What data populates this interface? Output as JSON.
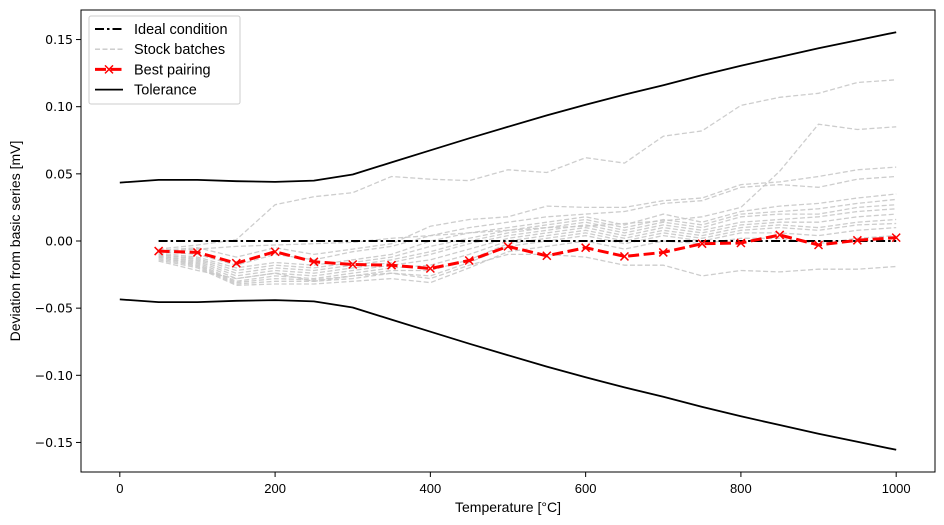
{
  "chart_data": {
    "type": "line",
    "title": "",
    "xlabel": "Temperature  [°C]",
    "ylabel": "Deviation from basic series  [mV]",
    "xlim": [
      -50,
      1050
    ],
    "ylim": [
      -0.172,
      0.172
    ],
    "xticks": [
      0,
      200,
      400,
      600,
      800,
      1000
    ],
    "xtick_labels": [
      "0",
      "200",
      "400",
      "600",
      "800",
      "1000"
    ],
    "yticks": [
      0.15,
      0.1,
      0.05,
      0.0,
      -0.05,
      -0.1,
      -0.15
    ],
    "ytick_labels": [
      "0.15",
      "0.10",
      "0.05",
      "0.00",
      "−0.05",
      "−0.10",
      "−0.15"
    ],
    "grid": false,
    "legend": {
      "placement": "top-left",
      "entries": [
        {
          "label": "Ideal condition",
          "style": "dashdot",
          "color": "#000000"
        },
        {
          "label": "Stock batches",
          "style": "dashed",
          "color": "#c8c8c8"
        },
        {
          "label": "Best pairing",
          "style": "dashed-marker-x",
          "color": "#ff0000"
        },
        {
          "label": "Tolerance",
          "style": "solid",
          "color": "#000000"
        }
      ]
    },
    "series": [
      {
        "name": "Ideal condition",
        "color": "#000000",
        "style": "dashdot",
        "x": [
          50,
          1000
        ],
        "y": [
          0.0,
          0.0
        ]
      },
      {
        "name": "Tolerance (upper)",
        "color": "#000000",
        "style": "solid",
        "x": [
          0,
          50,
          100,
          150,
          200,
          250,
          300,
          350,
          400,
          450,
          500,
          550,
          600,
          650,
          700,
          750,
          800,
          850,
          900,
          950,
          1000
        ],
        "y": [
          0.0435,
          0.0455,
          0.0455,
          0.0445,
          0.044,
          0.045,
          0.0495,
          0.0585,
          0.0675,
          0.0765,
          0.085,
          0.0935,
          0.1015,
          0.109,
          0.116,
          0.1235,
          0.1305,
          0.137,
          0.1435,
          0.1495,
          0.1555
        ]
      },
      {
        "name": "Tolerance (lower)",
        "color": "#000000",
        "style": "solid",
        "x": [
          0,
          50,
          100,
          150,
          200,
          250,
          300,
          350,
          400,
          450,
          500,
          550,
          600,
          650,
          700,
          750,
          800,
          850,
          900,
          950,
          1000
        ],
        "y": [
          -0.0435,
          -0.0455,
          -0.0455,
          -0.0445,
          -0.044,
          -0.045,
          -0.0495,
          -0.0585,
          -0.0675,
          -0.0765,
          -0.085,
          -0.0935,
          -0.1015,
          -0.109,
          -0.116,
          -0.1235,
          -0.1305,
          -0.137,
          -0.1435,
          -0.1495,
          -0.1555
        ]
      },
      {
        "name": "Best pairing",
        "color": "#ff0000",
        "style": "dashed-marker-x",
        "x": [
          50,
          100,
          150,
          200,
          250,
          300,
          350,
          400,
          450,
          500,
          550,
          600,
          650,
          700,
          750,
          800,
          850,
          900,
          950,
          1000
        ],
        "y": [
          -0.0075,
          -0.0085,
          -0.0165,
          -0.008,
          -0.0155,
          -0.0175,
          -0.018,
          -0.0205,
          -0.0145,
          -0.004,
          -0.011,
          -0.005,
          -0.0115,
          -0.0085,
          -0.002,
          -0.0015,
          0.0045,
          -0.003,
          0.0005,
          0.0025
        ]
      }
    ],
    "stock_batches": {
      "color": "#c8c8c8",
      "style": "dashed",
      "x": [
        50,
        100,
        150,
        200,
        250,
        300,
        350,
        400,
        450,
        500,
        550,
        600,
        650,
        700,
        750,
        800,
        850,
        900,
        950,
        1000
      ],
      "lines": [
        [
          -0.006,
          -0.003,
          0.001,
          0.027,
          0.033,
          0.036,
          0.048,
          0.046,
          0.045,
          0.053,
          0.051,
          0.062,
          0.058,
          0.078,
          0.082,
          0.101,
          0.107,
          0.11,
          0.118,
          0.12
        ],
        [
          -0.008,
          -0.006,
          -0.004,
          -0.003,
          -0.002,
          -0.001,
          0.002,
          0.004,
          0.006,
          0.008,
          0.01,
          0.011,
          0.013,
          0.015,
          0.018,
          0.025,
          0.052,
          0.087,
          0.083,
          0.085
        ],
        [
          -0.007,
          -0.005,
          -0.012,
          -0.005,
          -0.01,
          -0.006,
          -0.002,
          0.011,
          0.016,
          0.018,
          0.026,
          0.025,
          0.025,
          0.03,
          0.032,
          0.042,
          0.044,
          0.048,
          0.053,
          0.055
        ],
        [
          -0.008,
          -0.01,
          -0.018,
          -0.01,
          -0.014,
          -0.008,
          -0.004,
          0.004,
          0.01,
          0.014,
          0.018,
          0.02,
          0.022,
          0.028,
          0.03,
          0.04,
          0.042,
          0.04,
          0.046,
          0.048
        ],
        [
          -0.009,
          -0.012,
          -0.02,
          -0.016,
          -0.018,
          -0.014,
          -0.01,
          0.0,
          0.006,
          0.01,
          0.014,
          0.018,
          0.012,
          0.02,
          0.014,
          0.022,
          0.026,
          0.028,
          0.032,
          0.035
        ],
        [
          -0.01,
          -0.013,
          -0.022,
          -0.018,
          -0.02,
          -0.016,
          -0.012,
          -0.004,
          0.002,
          0.008,
          0.012,
          0.016,
          0.01,
          0.016,
          0.012,
          0.02,
          0.022,
          0.024,
          0.028,
          0.031
        ],
        [
          -0.01,
          -0.014,
          -0.024,
          -0.02,
          -0.022,
          -0.018,
          -0.014,
          -0.008,
          0.0,
          0.006,
          0.01,
          0.014,
          0.008,
          0.014,
          0.01,
          0.018,
          0.02,
          0.02,
          0.025,
          0.027
        ],
        [
          -0.011,
          -0.015,
          -0.026,
          -0.022,
          -0.024,
          -0.02,
          -0.016,
          -0.01,
          -0.002,
          0.004,
          0.008,
          0.012,
          0.006,
          0.012,
          0.008,
          0.014,
          0.016,
          0.018,
          0.022,
          0.024
        ],
        [
          -0.011,
          -0.016,
          -0.028,
          -0.024,
          -0.026,
          -0.022,
          -0.018,
          -0.014,
          -0.006,
          0.002,
          0.006,
          0.01,
          0.004,
          0.01,
          0.006,
          0.012,
          0.014,
          0.014,
          0.018,
          0.02
        ],
        [
          -0.012,
          -0.017,
          -0.03,
          -0.026,
          -0.028,
          -0.024,
          -0.02,
          -0.018,
          -0.01,
          0.0,
          0.004,
          0.008,
          0.002,
          0.008,
          0.004,
          0.01,
          0.012,
          0.01,
          0.014,
          0.016
        ],
        [
          -0.012,
          -0.018,
          -0.031,
          -0.028,
          -0.029,
          -0.026,
          -0.022,
          -0.022,
          -0.014,
          -0.002,
          0.002,
          0.006,
          0.0,
          0.006,
          0.002,
          0.008,
          0.01,
          0.008,
          0.012,
          0.013
        ],
        [
          -0.013,
          -0.019,
          -0.032,
          -0.03,
          -0.03,
          -0.028,
          -0.024,
          -0.026,
          -0.016,
          -0.004,
          0.0,
          0.004,
          -0.002,
          0.004,
          0.0,
          0.006,
          0.006,
          0.004,
          0.008,
          0.01
        ],
        [
          -0.014,
          -0.02,
          -0.033,
          -0.032,
          -0.032,
          -0.03,
          -0.028,
          -0.031,
          -0.02,
          -0.008,
          -0.004,
          0.0,
          -0.006,
          0.0,
          -0.002,
          0.002,
          0.002,
          -0.002,
          0.002,
          0.004
        ],
        [
          -0.015,
          -0.022,
          -0.028,
          -0.024,
          -0.03,
          -0.026,
          -0.024,
          -0.028,
          -0.018,
          -0.01,
          -0.01,
          -0.012,
          -0.018,
          -0.018,
          -0.026,
          -0.022,
          -0.023,
          -0.021,
          -0.021,
          -0.019
        ]
      ]
    }
  }
}
